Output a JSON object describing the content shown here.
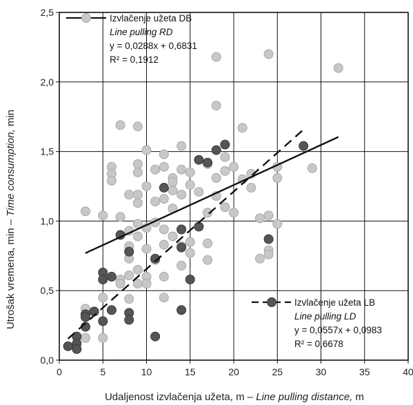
{
  "chart_data": {
    "type": "scatter",
    "xlabel": "Udaljenost izvlačenja užeta, m – ",
    "xlabel_italic": "Line pulling distance,",
    "xlabel_unit": " m",
    "ylabel": "Utrošak vremena, min – ",
    "ylabel_italic": "Time consumption,",
    "ylabel_unit": " min",
    "xlim": [
      0,
      40
    ],
    "ylim": [
      0,
      2.5
    ],
    "x_ticks": [
      "0",
      "5",
      "10",
      "15",
      "20",
      "25",
      "30",
      "35",
      "40"
    ],
    "y_ticks": [
      "0,0",
      "0,5",
      "1,0",
      "1,5",
      "2,0",
      "2,5"
    ],
    "grid": true,
    "series": [
      {
        "name": "Izvlačenje užeta DB",
        "subtitle": "Line pulling RD",
        "equation": "y = 0,0288x + 0,6831",
        "r2": "R² = 0,1912",
        "marker_color": "#c8c8c8",
        "marker_edge": "#a8a8a8",
        "trend": {
          "slope": 0.0288,
          "intercept": 0.6831,
          "x_range": [
            3,
            32
          ],
          "dash": "solid"
        },
        "points": [
          [
            3,
            1.07
          ],
          [
            3,
            0.37
          ],
          [
            3,
            0.16
          ],
          [
            5,
            1.04
          ],
          [
            5,
            0.45
          ],
          [
            5,
            0.16
          ],
          [
            6,
            1.39
          ],
          [
            6,
            1.34
          ],
          [
            6,
            1.29
          ],
          [
            7,
            1.69
          ],
          [
            7,
            1.03
          ],
          [
            7,
            0.58
          ],
          [
            7,
            0.55
          ],
          [
            8,
            1.19
          ],
          [
            8,
            0.93
          ],
          [
            8,
            0.82
          ],
          [
            8,
            0.73
          ],
          [
            8,
            0.61
          ],
          [
            8,
            0.44
          ],
          [
            9,
            1.68
          ],
          [
            9,
            1.41
          ],
          [
            9,
            1.35
          ],
          [
            9,
            1.19
          ],
          [
            9,
            1.13
          ],
          [
            9,
            0.98
          ],
          [
            9,
            0.89
          ],
          [
            9,
            0.65
          ],
          [
            9,
            0.55
          ],
          [
            10,
            1.51
          ],
          [
            10,
            1.25
          ],
          [
            10,
            0.95
          ],
          [
            10,
            0.8
          ],
          [
            10,
            0.6
          ],
          [
            10,
            0.55
          ],
          [
            11,
            1.37
          ],
          [
            11,
            1.14
          ],
          [
            11,
            0.99
          ],
          [
            11,
            0.72
          ],
          [
            12,
            1.48
          ],
          [
            12,
            1.39
          ],
          [
            12,
            1.16
          ],
          [
            12,
            0.94
          ],
          [
            12,
            0.83
          ],
          [
            12,
            0.6
          ],
          [
            12,
            0.45
          ],
          [
            13,
            1.31
          ],
          [
            13,
            1.28
          ],
          [
            13,
            1.22
          ],
          [
            13,
            1.09
          ],
          [
            13,
            0.89
          ],
          [
            14,
            1.54
          ],
          [
            14,
            1.37
          ],
          [
            14,
            1.19
          ],
          [
            14,
            0.94
          ],
          [
            14,
            0.82
          ],
          [
            14,
            0.68
          ],
          [
            15,
            1.35
          ],
          [
            15,
            1.26
          ],
          [
            15,
            0.85
          ],
          [
            15,
            0.77
          ],
          [
            16,
            1.21
          ],
          [
            16,
            0.96
          ],
          [
            17,
            1.41
          ],
          [
            17,
            1.06
          ],
          [
            17,
            0.84
          ],
          [
            17,
            0.72
          ],
          [
            18,
            2.18
          ],
          [
            18,
            1.83
          ],
          [
            18,
            1.31
          ],
          [
            18,
            1.18
          ],
          [
            19,
            1.46
          ],
          [
            19,
            1.36
          ],
          [
            19,
            1.1
          ],
          [
            20,
            1.39
          ],
          [
            20,
            1.06
          ],
          [
            21,
            1.67
          ],
          [
            21,
            1.3
          ],
          [
            22,
            1.34
          ],
          [
            22,
            1.24
          ],
          [
            23,
            1.02
          ],
          [
            23,
            0.73
          ],
          [
            24,
            2.2
          ],
          [
            24,
            1.04
          ],
          [
            24,
            0.79
          ],
          [
            24,
            0.76
          ],
          [
            25,
            1.39
          ],
          [
            25,
            1.31
          ],
          [
            25,
            0.98
          ],
          [
            29,
            1.38
          ],
          [
            32,
            2.1
          ]
        ]
      },
      {
        "name": "Izvlačenje užeta LB",
        "subtitle": "Line pulling LD",
        "equation": "y = 0,0557x + 0,0983",
        "r2": "R² = 0,6678",
        "marker_color": "#555555",
        "marker_edge": "#3a3a3a",
        "trend": {
          "slope": 0.0557,
          "intercept": 0.0983,
          "x_range": [
            1,
            28
          ],
          "dash": "dashed"
        },
        "points": [
          [
            1,
            0.1
          ],
          [
            2,
            0.17
          ],
          [
            2,
            0.12
          ],
          [
            2,
            0.08
          ],
          [
            3,
            0.33
          ],
          [
            3,
            0.31
          ],
          [
            3,
            0.24
          ],
          [
            4,
            0.35
          ],
          [
            5,
            0.63
          ],
          [
            5,
            0.58
          ],
          [
            5,
            0.28
          ],
          [
            6,
            0.6
          ],
          [
            6,
            0.36
          ],
          [
            7,
            0.9
          ],
          [
            8,
            0.78
          ],
          [
            8,
            0.34
          ],
          [
            8,
            0.29
          ],
          [
            11,
            0.73
          ],
          [
            11,
            0.17
          ],
          [
            12,
            1.24
          ],
          [
            14,
            0.94
          ],
          [
            14,
            0.81
          ],
          [
            14,
            0.36
          ],
          [
            15,
            0.58
          ],
          [
            16,
            1.44
          ],
          [
            16,
            0.96
          ],
          [
            17,
            1.42
          ],
          [
            18,
            1.51
          ],
          [
            19,
            1.55
          ],
          [
            24,
            0.87
          ],
          [
            28,
            1.54
          ]
        ]
      }
    ]
  }
}
